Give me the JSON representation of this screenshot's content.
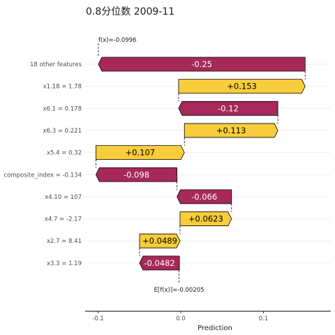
{
  "chart_data": {
    "type": "waterfall",
    "title": "0.8分位数 2009-11",
    "xlabel": "Prediction",
    "xlim": [
      -0.115,
      0.195
    ],
    "xticks": [
      -0.1,
      0.0,
      0.1
    ],
    "xtick_labels": [
      "-0.1",
      "0.0",
      "0.1"
    ],
    "grid": true,
    "fx_label": "f(x)=-0.0996",
    "fx_value": -0.0996,
    "base_label": "E[f(x)]=-0.00205",
    "base_value": -0.00205,
    "features": [
      {
        "name": "18 other features",
        "value": -0.25,
        "label": "-0.25"
      },
      {
        "name": "x1.18 = 1.78",
        "value": 0.153,
        "label": "+0.153"
      },
      {
        "name": "x6.1 = 0.178",
        "value": -0.12,
        "label": "-0.12"
      },
      {
        "name": "x6.3 = 0.221",
        "value": 0.113,
        "label": "+0.113"
      },
      {
        "name": "x5.4 = 0.32",
        "value": 0.107,
        "label": "+0.107"
      },
      {
        "name": "composite_index = -0.134",
        "value": -0.098,
        "label": "-0.098"
      },
      {
        "name": "x4.10 = 107",
        "value": -0.066,
        "label": "-0.066"
      },
      {
        "name": "x4.7 = -2.17",
        "value": 0.0623,
        "label": "+0.0623"
      },
      {
        "name": "x2.7 = 8.41",
        "value": 0.0489,
        "label": "+0.0489"
      },
      {
        "name": "x3.3 = 1.19",
        "value": -0.0482,
        "label": "-0.0482"
      }
    ],
    "colors": {
      "positive": "#f7cd3b",
      "negative": "#a6295a",
      "positive_text": "#000000",
      "negative_text": "#ffffff"
    }
  }
}
